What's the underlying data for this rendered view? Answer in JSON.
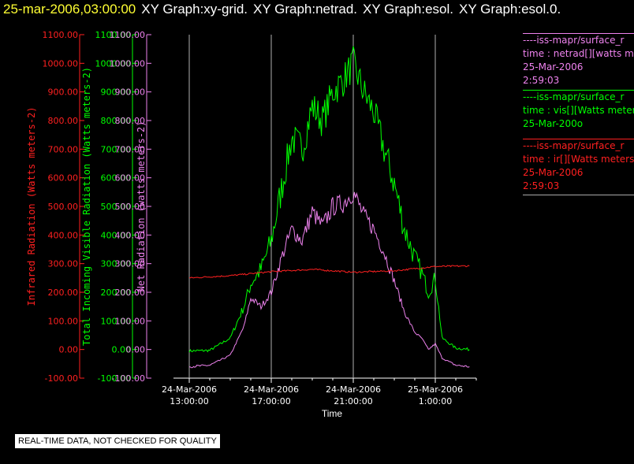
{
  "header": {
    "timestamp": "25-mar-2006,03:00:00",
    "graphs": [
      "XY Graph:xy-grid.",
      "XY Graph:netrad.",
      "XY Graph:esol.",
      "XY Graph:esol.0."
    ]
  },
  "colors": {
    "ir": "#ff2020",
    "vis": "#00ff00",
    "net": "#ee82ee",
    "axis": "#ffffff",
    "grid": "#b0b0b0"
  },
  "notice": "REAL-TIME DATA, NOT CHECKED FOR QUALITY",
  "legend": [
    {
      "lines": [
        "----iss-mapr/surface_r",
        "time : netrad[][watts m",
        "25-Mar-2006",
        "2:59:03"
      ],
      "color": "#ee82ee"
    },
    {
      "lines": [
        "----iss-mapr/surface_r",
        "time : vis[][Watts meter",
        "25-Mar-200o"
      ],
      "color": "#00ff00"
    },
    {
      "lines": [
        "----iss-mapr/surface_r",
        "time : ir[][Watts meters",
        "25-Mar-2006",
        "2:59:03"
      ],
      "color": "#ff2020"
    }
  ],
  "chart_data": {
    "type": "line",
    "xlabel": "Time",
    "x_ticks": [
      {
        "date": "24-Mar-2006",
        "time": "13:00:00"
      },
      {
        "date": "24-Mar-2006",
        "time": "17:00:00"
      },
      {
        "date": "24-Mar-2006",
        "time": "21:00:00"
      },
      {
        "date": "25-Mar-2006",
        "time": "1:00:00"
      }
    ],
    "xlim": [
      "2006-03-24 13:00",
      "2006-03-25 03:00"
    ],
    "grid": "vertical",
    "axes": [
      {
        "id": "ir",
        "label": "Infrared Radiation (Watts meters-2)",
        "ylim": [
          -100,
          1100
        ]
      },
      {
        "id": "vis",
        "label": "Total Incoming Visible Radiation (Watts meters-2)",
        "ylim": [
          -100,
          1100
        ]
      },
      {
        "id": "net",
        "label": "Net Radiation (watts meters-2)",
        "ylim": [
          -100,
          1100
        ]
      }
    ],
    "y_ticks": [
      "1100.00",
      "1000.00",
      "900.00",
      "800.00",
      "700.00",
      "600.00",
      "500.00",
      "400.00",
      "300.00",
      "200.00",
      "100.00",
      "0.00",
      "-100.00"
    ],
    "series": [
      {
        "id": "vis",
        "x": [
          "2006-03-24 13:00",
          "2006-03-24 14:00",
          "2006-03-24 15:00",
          "2006-03-24 15:40",
          "2006-03-24 16:00",
          "2006-03-24 16:30",
          "2006-03-24 17:00",
          "2006-03-24 17:30",
          "2006-03-24 18:00",
          "2006-03-24 18:30",
          "2006-03-24 19:00",
          "2006-03-24 19:30",
          "2006-03-24 20:00",
          "2006-03-24 20:30",
          "2006-03-24 21:00",
          "2006-03-24 21:30",
          "2006-03-24 22:00",
          "2006-03-24 22:30",
          "2006-03-24 23:00",
          "2006-03-24 23:30",
          "2006-03-25 00:00",
          "2006-03-25 00:20",
          "2006-03-25 00:40",
          "2006-03-25 01:00",
          "2006-03-25 01:20",
          "2006-03-25 02:00",
          "2006-03-25 02:40"
        ],
        "y": [
          -5,
          -3,
          40,
          150,
          230,
          280,
          380,
          560,
          740,
          700,
          850,
          800,
          900,
          940,
          1000,
          900,
          830,
          700,
          580,
          420,
          320,
          270,
          200,
          250,
          40,
          5,
          0
        ]
      },
      {
        "id": "net",
        "x": [
          "2006-03-24 13:00",
          "2006-03-24 14:00",
          "2006-03-24 15:00",
          "2006-03-24 15:40",
          "2006-03-24 16:00",
          "2006-03-24 16:30",
          "2006-03-24 17:00",
          "2006-03-24 17:30",
          "2006-03-24 18:00",
          "2006-03-24 18:30",
          "2006-03-24 19:00",
          "2006-03-24 19:30",
          "2006-03-24 20:00",
          "2006-03-24 20:30",
          "2006-03-24 21:00",
          "2006-03-24 21:30",
          "2006-03-24 22:00",
          "2006-03-24 22:30",
          "2006-03-24 23:00",
          "2006-03-24 23:30",
          "2006-03-25 00:00",
          "2006-03-25 00:20",
          "2006-03-25 00:40",
          "2006-03-25 01:00",
          "2006-03-25 01:20",
          "2006-03-25 02:00",
          "2006-03-25 02:40"
        ],
        "y": [
          -60,
          -55,
          -20,
          80,
          180,
          150,
          200,
          320,
          420,
          380,
          480,
          430,
          500,
          510,
          550,
          470,
          420,
          340,
          240,
          130,
          60,
          40,
          0,
          20,
          -30,
          -55,
          -60
        ]
      },
      {
        "id": "ir",
        "x": [
          "2006-03-24 13:00",
          "2006-03-24 15:00",
          "2006-03-24 17:00",
          "2006-03-24 19:00",
          "2006-03-24 21:00",
          "2006-03-24 23:00",
          "2006-03-25 01:00",
          "2006-03-25 02:40"
        ],
        "y": [
          250,
          258,
          272,
          280,
          270,
          275,
          290,
          292
        ]
      }
    ]
  }
}
